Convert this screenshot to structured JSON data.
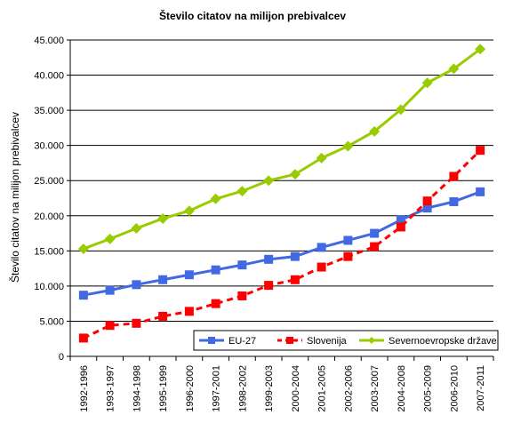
{
  "chart_data": {
    "type": "line",
    "title": "Število citatov na milijon prebivalcev",
    "ylabel": "Število citatov na milijon prebivalcev",
    "xlabel": "",
    "ylim": [
      0,
      45000
    ],
    "y_ticks": [
      "0",
      "5.000",
      "10.000",
      "15.000",
      "20.000",
      "25.000",
      "30.000",
      "35.000",
      "40.000",
      "45.000"
    ],
    "y_tick_values": [
      0,
      5000,
      10000,
      15000,
      20000,
      25000,
      30000,
      35000,
      40000,
      45000
    ],
    "grid": true,
    "legend_position": "bottom-right",
    "categories": [
      "1992-1996",
      "1993-1997",
      "1994-1998",
      "1995-1999",
      "1996-2000",
      "1997-2001",
      "1998-2002",
      "1999-2003",
      "2000-2004",
      "2001-2005",
      "2002-2006",
      "2003-2007",
      "2004-2008",
      "2005-2009",
      "2006-2010",
      "2007-2011"
    ],
    "series": [
      {
        "name": "EU-27",
        "color": "#4169e1",
        "marker": "square",
        "line": "solid",
        "values": [
          8700,
          9400,
          10200,
          10900,
          11600,
          12300,
          13000,
          13800,
          14200,
          15500,
          16500,
          17500,
          19400,
          21100,
          22000,
          23400
        ]
      },
      {
        "name": "Slovenija",
        "color": "#ff0000",
        "marker": "square",
        "line": "dashed",
        "values": [
          2600,
          4400,
          4700,
          5700,
          6400,
          7500,
          8600,
          10100,
          10900,
          12700,
          14200,
          15600,
          18400,
          22100,
          25600,
          29300
        ]
      },
      {
        "name": "Severnoevropske države",
        "color": "#99cc00",
        "marker": "diamond",
        "line": "solid",
        "values": [
          15300,
          16700,
          18200,
          19600,
          20700,
          22400,
          23500,
          25000,
          25900,
          28200,
          29900,
          32000,
          35100,
          38900,
          40900,
          43700
        ]
      }
    ]
  }
}
